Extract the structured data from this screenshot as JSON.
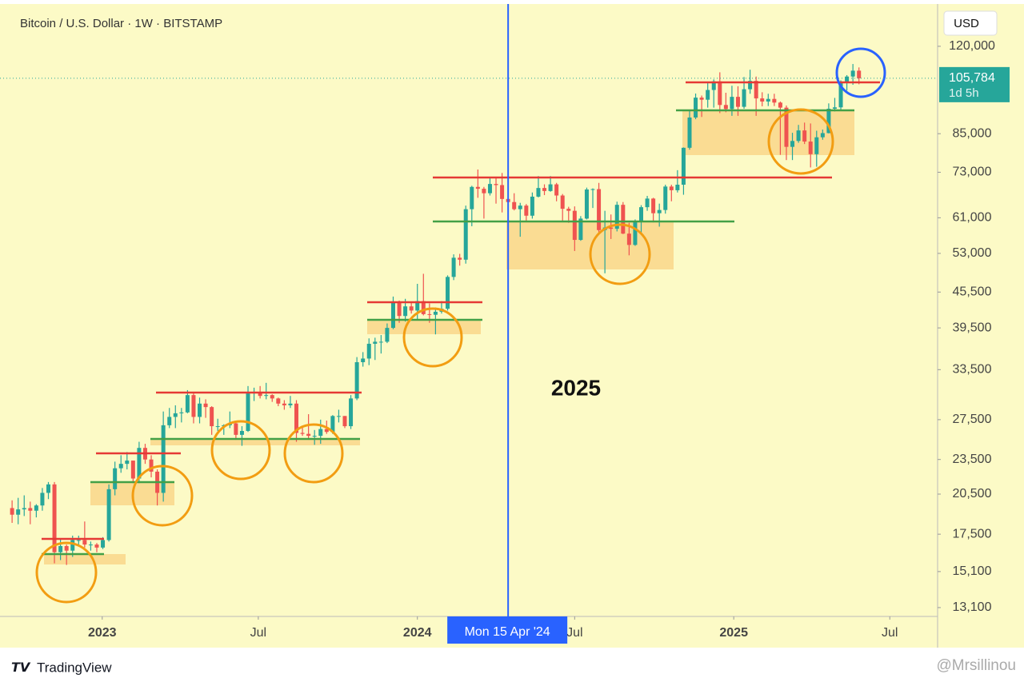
{
  "chart_data": {
    "type": "candlestick",
    "title": "Bitcoin / U.S. Dollar · 1W · BITSTAMP",
    "currency": "USD",
    "log_scale": true,
    "up_color": "#26a69a",
    "down_color": "#ef5350",
    "annotation": "2025",
    "crosshair": {
      "value": 82,
      "label": "Mon 15 Apr '24"
    },
    "last_price": {
      "value": 105784,
      "label": "105,784"
    },
    "countdown": "1d 5h",
    "xlim": [
      -2,
      153
    ],
    "xticks": [
      {
        "value": 14.9,
        "label": "2023"
      },
      {
        "value": 40.7,
        "label": "Jul"
      },
      {
        "value": 67,
        "label": "2024"
      },
      {
        "value": 93,
        "label": "Jul"
      },
      {
        "value": 119.3,
        "label": "2025"
      },
      {
        "value": 145.1,
        "label": "Jul"
      }
    ],
    "ylim": [
      12650,
      141800
    ],
    "yticks": [
      {
        "value": 13100,
        "label": "13,100"
      },
      {
        "value": 15100,
        "label": "15,100"
      },
      {
        "value": 17500,
        "label": "17,500"
      },
      {
        "value": 20500,
        "label": "20,500"
      },
      {
        "value": 23500,
        "label": "23,500"
      },
      {
        "value": 27500,
        "label": "27,500"
      },
      {
        "value": 33500,
        "label": "33,500"
      },
      {
        "value": 39500,
        "label": "39,500"
      },
      {
        "value": 45500,
        "label": "45,500"
      },
      {
        "value": 53000,
        "label": "53,000"
      },
      {
        "value": 61000,
        "label": "61,000"
      },
      {
        "value": 73000,
        "label": "73,000"
      },
      {
        "value": 85000,
        "label": "85,000"
      },
      {
        "value": 120000,
        "label": "120,000"
      }
    ],
    "open": [
      19400,
      18900,
      19300,
      19400,
      19200,
      19600,
      20600,
      21300,
      16300,
      16700,
      16400,
      17100,
      17100,
      16800,
      16800,
      16600,
      17100,
      20900,
      22700,
      23100,
      23400,
      21800,
      24600,
      23500,
      22400,
      20600,
      26900,
      27800,
      28200,
      28300,
      30300,
      27800,
      29300,
      28900,
      26800,
      26800,
      26900,
      27100,
      25900,
      26300,
      30500,
      30600,
      30200,
      30300,
      29900,
      29300,
      29100,
      29300,
      26100,
      26000,
      25800,
      25800,
      26500,
      26200,
      27900,
      27900,
      26800,
      29900,
      34500,
      35000,
      37100,
      37400,
      37400,
      39500,
      43800,
      41400,
      43000,
      42300,
      43900,
      41700,
      41600,
      42100,
      42600,
      48300,
      52100,
      51700,
      63100,
      68900,
      68400,
      67200,
      69700,
      69400,
      65700,
      64900,
      63100,
      64000,
      61500,
      66300,
      68600,
      67800,
      69600,
      66600,
      63200,
      62700,
      55900,
      60800,
      68200,
      68300,
      58100,
      58700,
      58400,
      64200,
      57300,
      54800,
      60000,
      63600,
      65800,
      62100,
      62900,
      69000,
      68000,
      69500,
      80400,
      90600,
      98000,
      97200,
      101000,
      104500,
      95200,
      93700,
      98300,
      94500,
      101300,
      104700,
      97700,
      96500,
      97500,
      96100,
      94200,
      80700,
      82600,
      86100,
      82400,
      78400,
      83800,
      85200,
      93800,
      94300,
      104100,
      106500,
      109000
    ],
    "high": [
      20000,
      20200,
      20400,
      19900,
      19700,
      21000,
      21500,
      21500,
      17200,
      16800,
      17400,
      17400,
      18400,
      17000,
      16900,
      17300,
      21300,
      23300,
      23900,
      24200,
      23400,
      25200,
      25000,
      23900,
      22600,
      28400,
      28800,
      29100,
      28800,
      30900,
      30500,
      30000,
      29800,
      29000,
      27600,
      27000,
      28400,
      27400,
      26800,
      31400,
      31200,
      31400,
      31800,
      30400,
      30000,
      29700,
      30200,
      29700,
      26800,
      28100,
      26400,
      27500,
      27400,
      28000,
      28600,
      27900,
      30300,
      35200,
      35900,
      37900,
      38000,
      38400,
      40200,
      44700,
      44000,
      44300,
      43800,
      47000,
      48900,
      43500,
      42800,
      43900,
      48600,
      52800,
      52900,
      64000,
      69200,
      73800,
      68900,
      71600,
      71300,
      72800,
      66900,
      67200,
      64700,
      64400,
      67400,
      71900,
      69600,
      71900,
      70000,
      67000,
      63700,
      63800,
      61400,
      68700,
      68500,
      70000,
      62700,
      61800,
      65000,
      64900,
      59800,
      60600,
      64100,
      66500,
      66000,
      64500,
      69500,
      69500,
      73600,
      80500,
      93500,
      99600,
      98800,
      103900,
      105300,
      108300,
      99900,
      102700,
      102500,
      106300,
      109400,
      106500,
      100100,
      99500,
      99500,
      96500,
      95000,
      85300,
      88000,
      88800,
      88500,
      86000,
      86400,
      95800,
      97900,
      104900,
      107100,
      111900,
      110400
    ],
    "low": [
      18300,
      18200,
      18800,
      18200,
      18700,
      19200,
      20100,
      15600,
      15800,
      15500,
      16000,
      16700,
      16600,
      16400,
      16300,
      16500,
      17000,
      20400,
      22300,
      22600,
      21400,
      21400,
      23100,
      21900,
      19600,
      19900,
      26600,
      26600,
      27200,
      28200,
      27100,
      27100,
      27700,
      25900,
      26300,
      25900,
      26600,
      25400,
      24800,
      26200,
      29600,
      29900,
      29800,
      29500,
      29000,
      28600,
      28800,
      25200,
      25800,
      25400,
      24900,
      25000,
      26000,
      26000,
      27200,
      26600,
      26500,
      29700,
      33900,
      34100,
      34800,
      35700,
      37200,
      39300,
      40300,
      40500,
      41800,
      40800,
      41500,
      40300,
      38500,
      41800,
      42300,
      47700,
      50500,
      50900,
      59000,
      66000,
      60800,
      66600,
      64500,
      62300,
      59700,
      62800,
      56600,
      60200,
      60800,
      66100,
      66700,
      67600,
      65100,
      60000,
      59800,
      53500,
      55700,
      60600,
      63400,
      57500,
      49000,
      56100,
      57800,
      57200,
      52600,
      54600,
      57500,
      62700,
      59900,
      58900,
      62000,
      65100,
      67400,
      66800,
      79800,
      90000,
      90800,
      94200,
      94200,
      92200,
      92500,
      91200,
      91200,
      93800,
      99500,
      91200,
      94700,
      94800,
      94800,
      78200,
      76600,
      76600,
      82000,
      81600,
      74400,
      74600,
      83000,
      85100,
      92800,
      93400,
      100800,
      103100,
      103300
    ],
    "close": [
      18900,
      19300,
      19400,
      19200,
      19600,
      20600,
      21300,
      16300,
      16700,
      16400,
      17100,
      17100,
      16800,
      16800,
      16600,
      17100,
      20900,
      22700,
      23100,
      23400,
      21800,
      24600,
      23500,
      22400,
      20600,
      26900,
      27800,
      28200,
      28300,
      30300,
      27800,
      29300,
      28900,
      26800,
      26800,
      26900,
      27100,
      25900,
      26300,
      30500,
      30600,
      30200,
      30300,
      29900,
      29300,
      29100,
      29300,
      26100,
      26000,
      25800,
      25800,
      26500,
      26200,
      27900,
      27900,
      26800,
      29900,
      34500,
      35000,
      37100,
      37400,
      37400,
      39500,
      43800,
      41400,
      43000,
      42300,
      43900,
      41700,
      41600,
      42100,
      42600,
      48300,
      52100,
      51700,
      63100,
      68900,
      68400,
      67200,
      69700,
      69400,
      65700,
      64900,
      63100,
      64000,
      61500,
      66300,
      68600,
      67800,
      69600,
      66600,
      63200,
      62700,
      55900,
      60800,
      68200,
      68300,
      58100,
      58700,
      58400,
      64200,
      57300,
      54800,
      60000,
      63600,
      65800,
      62100,
      62900,
      69000,
      68000,
      69500,
      80400,
      90600,
      98000,
      97200,
      101000,
      104500,
      95200,
      93700,
      98300,
      94500,
      101300,
      104700,
      97700,
      96500,
      97500,
      96100,
      94200,
      80700,
      82600,
      86100,
      82400,
      78400,
      83800,
      85200,
      93800,
      94300,
      104100,
      106500,
      109000,
      105784
    ]
  },
  "footer": {
    "brand": "TradingView",
    "watermark": "@Mrsillinou"
  }
}
